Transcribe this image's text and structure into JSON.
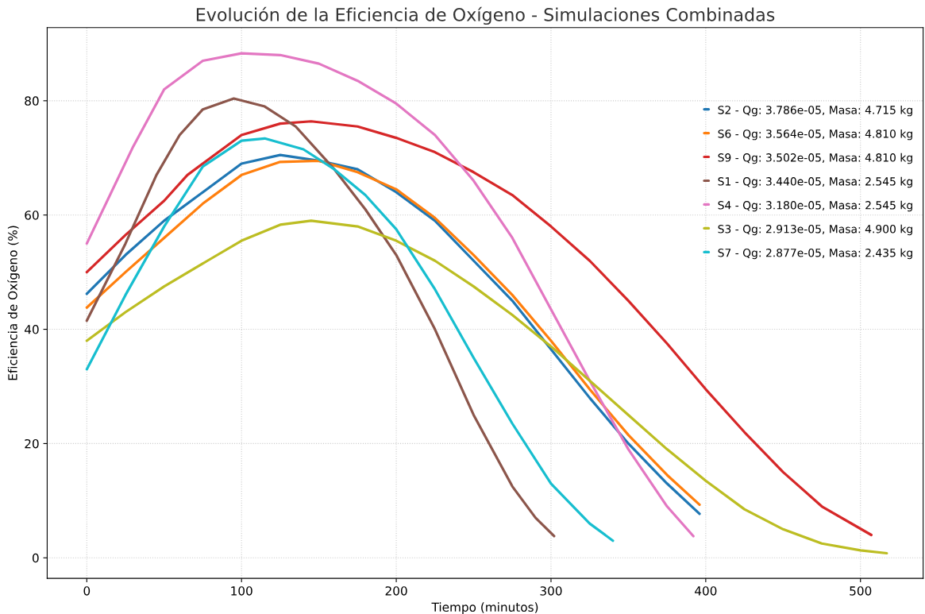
{
  "chart_data": {
    "type": "line",
    "title": "Evolución de la Eficiencia de Oxígeno - Simulaciones Combinadas",
    "xlabel": "Tiempo (minutos)",
    "ylabel": "Eficiencia de Oxígeno (%)",
    "xlim": [
      -25.6,
      540.5
    ],
    "ylim": [
      -3.6,
      92.8
    ],
    "xticks": [
      0,
      100,
      200,
      300,
      400,
      500
    ],
    "yticks": [
      0,
      20,
      40,
      60,
      80
    ],
    "grid": true,
    "legend": "right",
    "marker": "none",
    "line_style": "solid",
    "series": [
      {
        "name": "S2 - Qg: 3.786e-05, Masa: 4.715 kg",
        "color": "#1f77b4",
        "x": [
          0,
          25,
          50,
          75,
          100,
          125,
          150,
          175,
          200,
          225,
          250,
          275,
          300,
          325,
          350,
          375,
          396
        ],
        "values": [
          46.2,
          53,
          59,
          64,
          69,
          70.5,
          69.5,
          68,
          64,
          59,
          52,
          45,
          36.5,
          28,
          20,
          13,
          7.7
        ]
      },
      {
        "name": "S6 - Qg: 3.564e-05, Masa: 4.810 kg",
        "color": "#ff7f0e",
        "x": [
          0,
          25,
          50,
          75,
          100,
          125,
          150,
          175,
          200,
          225,
          250,
          275,
          300,
          325,
          350,
          375,
          396
        ],
        "values": [
          43.8,
          50,
          56,
          62,
          67,
          69.3,
          69.5,
          67.5,
          64.5,
          59.5,
          53,
          46,
          38,
          29.5,
          21.5,
          14.5,
          9.3
        ]
      },
      {
        "name": "S9 - Qg: 3.502e-05, Masa: 4.810 kg",
        "color": "#d62728",
        "x": [
          0,
          25,
          50,
          65,
          100,
          125,
          145,
          175,
          200,
          225,
          250,
          275,
          300,
          325,
          350,
          375,
          400,
          425,
          450,
          475,
          507
        ],
        "values": [
          50,
          56.5,
          62.5,
          67,
          74,
          76,
          76.4,
          75.5,
          73.5,
          71,
          67.5,
          63.5,
          58,
          52,
          45,
          37.5,
          29.5,
          22,
          15,
          9,
          4
        ]
      },
      {
        "name": "S1 - Qg: 3.440e-05, Masa: 2.545 kg",
        "color": "#8c564b",
        "x": [
          0,
          25,
          45,
          60,
          75,
          95,
          115,
          135,
          160,
          180,
          200,
          225,
          250,
          275,
          290,
          302
        ],
        "values": [
          41.5,
          55,
          67,
          74,
          78.5,
          80.4,
          79,
          75.5,
          68,
          61,
          53,
          40,
          25,
          12.5,
          7,
          3.8
        ]
      },
      {
        "name": "S4 - Qg: 3.180e-05, Masa: 2.545 kg",
        "color": "#e377c2",
        "x": [
          0,
          30,
          50,
          75,
          100,
          125,
          150,
          175,
          200,
          225,
          250,
          275,
          300,
          325,
          350,
          375,
          392
        ],
        "values": [
          55,
          72,
          82,
          87,
          88.3,
          88,
          86.5,
          83.5,
          79.5,
          74,
          66,
          56,
          43.5,
          31,
          19,
          9,
          3.8
        ]
      },
      {
        "name": "S3 - Qg: 2.913e-05, Masa: 4.900 kg",
        "color": "#bcbd22",
        "x": [
          0,
          25,
          50,
          78,
          100,
          125,
          145,
          175,
          200,
          225,
          250,
          275,
          300,
          325,
          350,
          375,
          400,
          425,
          450,
          475,
          500,
          517
        ],
        "values": [
          38,
          43,
          47.5,
          52,
          55.5,
          58.3,
          59,
          58,
          55.5,
          52,
          47.5,
          42.5,
          37,
          31,
          25,
          19,
          13.5,
          8.5,
          5,
          2.5,
          1.3,
          0.8
        ]
      },
      {
        "name": "S7 - Qg: 2.877e-05, Masa: 2.435 kg",
        "color": "#17becf",
        "x": [
          0,
          25,
          50,
          75,
          100,
          115,
          140,
          160,
          180,
          200,
          225,
          250,
          275,
          300,
          325,
          340
        ],
        "values": [
          33,
          46,
          58,
          68.5,
          73,
          73.4,
          71.5,
          68,
          63.5,
          57.5,
          47,
          35,
          23.5,
          13,
          6,
          3
        ]
      }
    ]
  }
}
